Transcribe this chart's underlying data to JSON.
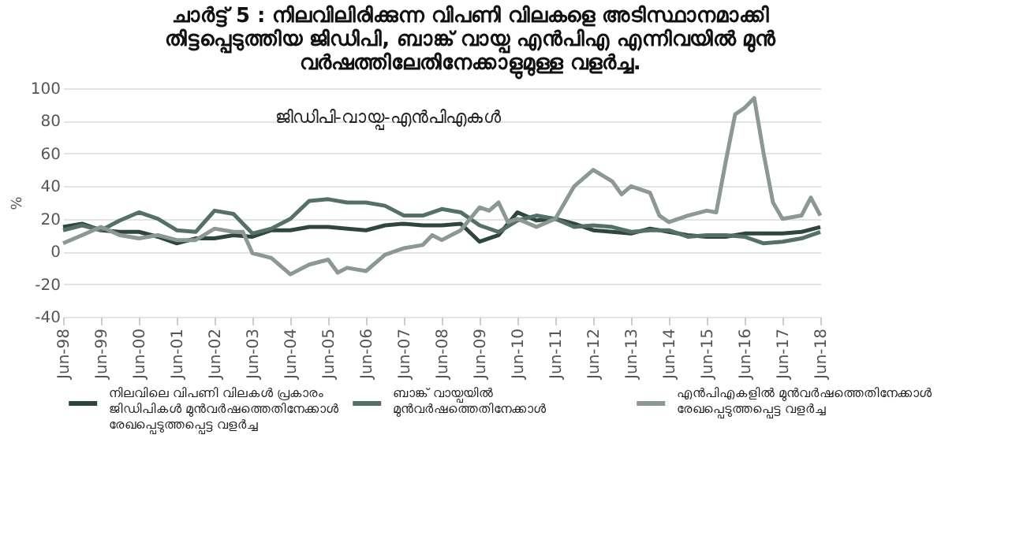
{
  "chart_data": {
    "type": "line",
    "title": "ചാർട്ട് 5 : നിലവിലിരിക്കുന്ന വിപണി വിലകളെ അടിസ്ഥാനമാക്കി തിട്ടപ്പെടുത്തിയ ജിഡിപി, ബാങ്ക് വായ്പ എൻപിഎ എന്നിവയിൽ മുൻ വർഷത്തിലേതിനേക്കാളുമുള്ള വളർച്ച.",
    "ylabel": "%",
    "annotations": [
      "ജിഡിപി-വായ്പ-എൻപിഎകൾ"
    ],
    "x": [
      "1998-06",
      "1998-12",
      "1999-06",
      "1999-12",
      "2000-06",
      "2000-12",
      "2001-06",
      "2001-12",
      "2002-06",
      "2002-12",
      "2003-06",
      "2003-12",
      "2004-06",
      "2004-12",
      "2005-06",
      "2005-12",
      "2006-06",
      "2006-12",
      "2007-06",
      "2007-12",
      "2008-06",
      "2008-12",
      "2009-06",
      "2009-12",
      "2010-06",
      "2010-12",
      "2011-06",
      "2011-12",
      "2012-06",
      "2012-12",
      "2013-06",
      "2013-12",
      "2014-06",
      "2014-12",
      "2015-06",
      "2015-12",
      "2016-06",
      "2016-12",
      "2017-06",
      "2017-12",
      "2018-06"
    ],
    "series": [
      {
        "name": "നിലവിലെ വിപണി വിലകൾ പ്രകാരം ജിഡിപികൾ മുൻവർഷത്തെതിനേക്കാൾ രേഖപ്പെടുത്തപ്പെട്ട വളർച്ച",
        "color": "#2e463e",
        "values": [
          15,
          17,
          13,
          12,
          12,
          9,
          5,
          8,
          8,
          10,
          9,
          13,
          13,
          15,
          15,
          14,
          13,
          16,
          17,
          16,
          16,
          17,
          6,
          10,
          24,
          19,
          20,
          17,
          13,
          12,
          11,
          14,
          12,
          10,
          9,
          9,
          11,
          11,
          11,
          12,
          15
        ]
      },
      {
        "name": "ബാങ്ക് വായ്പയിൽ മുൻവർഷത്തെതിനേക്കാൾ",
        "color": "#55706a",
        "values": [
          13,
          16,
          13,
          19,
          24,
          20,
          13,
          12,
          25,
          23,
          11,
          14,
          20,
          31,
          32,
          30,
          30,
          28,
          22,
          22,
          26,
          24,
          16,
          12,
          19,
          22,
          20,
          15,
          16,
          15,
          12,
          13,
          13,
          9,
          10,
          10,
          9,
          5,
          6,
          8,
          12
        ]
      },
      {
        "name": "എൻപിഎകളിൽ മുൻവർഷത്തെതിനേക്കാൾ രേഖപ്പെടുത്തപ്പെട്ട വളർച്ച",
        "color": "#8c9892",
        "x": [
          "1998-06",
          "1998-12",
          "1999-06",
          "1999-12",
          "2000-06",
          "2000-12",
          "2001-06",
          "2001-12",
          "2002-06",
          "2002-12",
          "2003-03",
          "2003-06",
          "2003-12",
          "2004-06",
          "2004-12",
          "2005-06",
          "2005-09",
          "2005-12",
          "2006-06",
          "2006-12",
          "2007-06",
          "2007-12",
          "2008-03",
          "2008-06",
          "2008-12",
          "2009-06",
          "2009-09",
          "2009-12",
          "2010-03",
          "2010-06",
          "2010-12",
          "2011-06",
          "2011-12",
          "2012-06",
          "2012-12",
          "2013-03",
          "2013-06",
          "2013-12",
          "2014-03",
          "2014-06",
          "2014-12",
          "2015-06",
          "2015-09",
          "2015-12",
          "2016-03",
          "2016-06",
          "2016-09",
          "2016-12",
          "2017-03",
          "2017-06",
          "2017-12",
          "2018-03",
          "2018-06"
        ],
        "values": [
          5,
          10,
          15,
          10,
          8,
          10,
          7,
          7,
          14,
          12,
          12,
          -1,
          -4,
          -14,
          -8,
          -5,
          -13,
          -10,
          -12,
          -2,
          2,
          4,
          10,
          7,
          13,
          27,
          25,
          30,
          18,
          20,
          15,
          20,
          40,
          50,
          43,
          35,
          40,
          36,
          22,
          18,
          22,
          25,
          24,
          55,
          84,
          88,
          94,
          60,
          30,
          20,
          22,
          33,
          22
        ]
      }
    ],
    "xlim": [
      "1998-06",
      "2018-06"
    ],
    "xticks": [
      {
        "value": "1998-06",
        "label": "Jun-98"
      },
      {
        "value": "1999-06",
        "label": "Jun-99"
      },
      {
        "value": "2000-06",
        "label": "Jun-00"
      },
      {
        "value": "2001-06",
        "label": "Jun-01"
      },
      {
        "value": "2002-06",
        "label": "Jun-02"
      },
      {
        "value": "2003-06",
        "label": "Jun-03"
      },
      {
        "value": "2004-06",
        "label": "Jun-04"
      },
      {
        "value": "2005-06",
        "label": "Jun-05"
      },
      {
        "value": "2006-06",
        "label": "Jun-06"
      },
      {
        "value": "2007-06",
        "label": "Jun-07"
      },
      {
        "value": "2008-06",
        "label": "Jun-08"
      },
      {
        "value": "2009-06",
        "label": "Jun-09"
      },
      {
        "value": "2010-06",
        "label": "Jun-10"
      },
      {
        "value": "2011-06",
        "label": "Jun-11"
      },
      {
        "value": "2012-06",
        "label": "Jun-12"
      },
      {
        "value": "2013-06",
        "label": "Jun-13"
      },
      {
        "value": "2014-06",
        "label": "Jun-14"
      },
      {
        "value": "2015-06",
        "label": "Jun-15"
      },
      {
        "value": "2016-06",
        "label": "Jun-16"
      },
      {
        "value": "2017-06",
        "label": "Jun-17"
      },
      {
        "value": "2018-06",
        "label": "Jun-18"
      }
    ],
    "ylim": [
      -40,
      100
    ],
    "yticks": [
      -40,
      -20,
      0,
      20,
      40,
      60,
      80,
      100
    ],
    "grid": "y",
    "legend": "bottom",
    "line_style": "solid",
    "marker": "none"
  }
}
